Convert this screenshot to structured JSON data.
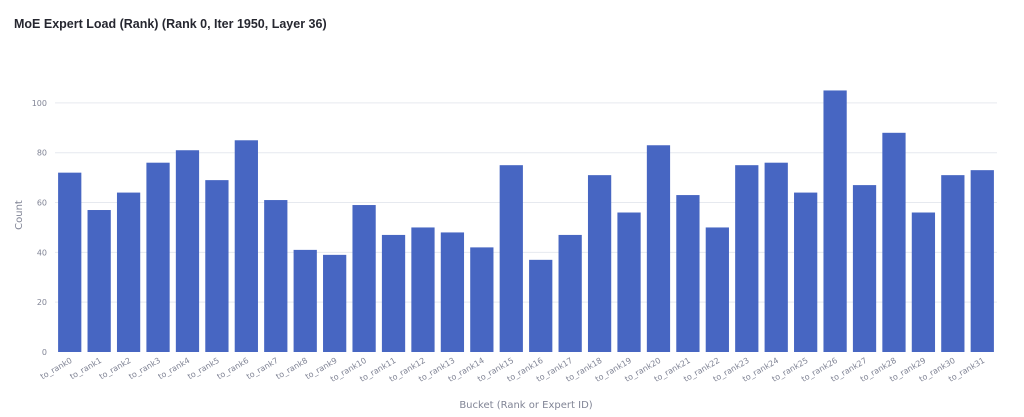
{
  "chart_data": {
    "type": "bar",
    "title": "MoE Expert Load (Rank) (Rank 0, Iter 1950, Layer 36)",
    "xlabel": "Bucket (Rank or Expert ID)",
    "ylabel": "Count",
    "ylim": [
      0,
      110
    ],
    "yticks": [
      0,
      20,
      40,
      60,
      80,
      100
    ],
    "grid": true,
    "bar_color": "#4766c2",
    "categories": [
      "to_rank0",
      "to_rank1",
      "to_rank2",
      "to_rank3",
      "to_rank4",
      "to_rank5",
      "to_rank6",
      "to_rank7",
      "to_rank8",
      "to_rank9",
      "to_rank10",
      "to_rank11",
      "to_rank12",
      "to_rank13",
      "to_rank14",
      "to_rank15",
      "to_rank16",
      "to_rank17",
      "to_rank18",
      "to_rank19",
      "to_rank20",
      "to_rank21",
      "to_rank22",
      "to_rank23",
      "to_rank24",
      "to_rank25",
      "to_rank26",
      "to_rank27",
      "to_rank28",
      "to_rank29",
      "to_rank30",
      "to_rank31"
    ],
    "values": [
      72,
      57,
      64,
      76,
      81,
      69,
      85,
      61,
      41,
      39,
      59,
      47,
      50,
      48,
      42,
      75,
      37,
      47,
      71,
      56,
      83,
      63,
      50,
      75,
      76,
      64,
      105,
      67,
      88,
      56,
      71,
      73
    ]
  }
}
